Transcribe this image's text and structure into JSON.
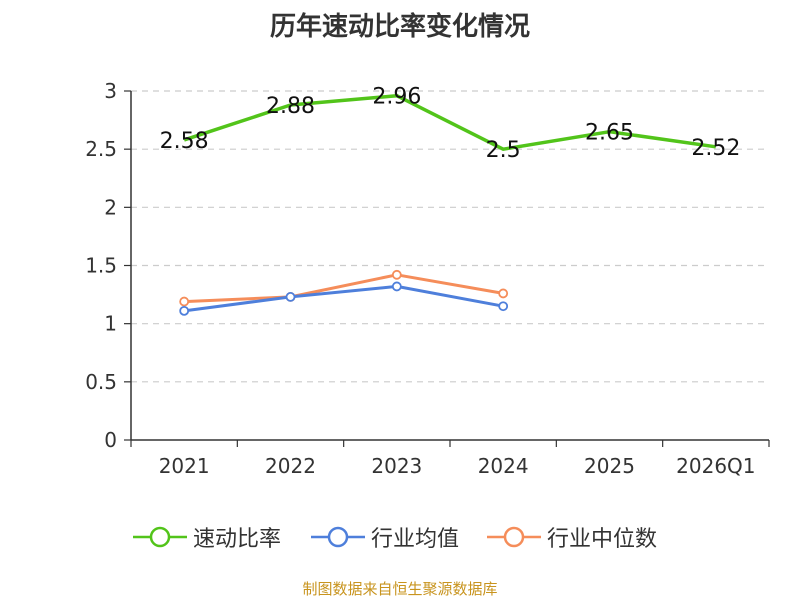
{
  "chart_data": {
    "type": "line",
    "title": "历年速动比率变化情况",
    "categories": [
      "2021",
      "2022",
      "2023",
      "2024",
      "2025",
      "2026Q1"
    ],
    "ylim": [
      0,
      3
    ],
    "yticks": [
      0,
      0.5,
      1,
      1.5,
      2,
      2.5,
      3
    ],
    "ytick_labels": [
      "0",
      "0.5",
      "1",
      "1.5",
      "2",
      "2.5",
      "3"
    ],
    "grid": true,
    "legend_position": "bottom",
    "series": [
      {
        "name": "速动比率",
        "color": "#52c41a",
        "values": [
          2.58,
          2.88,
          2.96,
          2.5,
          2.65,
          2.52
        ],
        "labels": [
          "2.58",
          "2.88",
          "2.96",
          "2.5",
          "2.65",
          "2.52"
        ]
      },
      {
        "name": "行业均值",
        "color": "#4e7fdb",
        "values": [
          1.11,
          1.23,
          1.32,
          1.15,
          null,
          null
        ]
      },
      {
        "name": "行业中位数",
        "color": "#f58d5a",
        "values": [
          1.19,
          1.23,
          1.42,
          1.26,
          null,
          null
        ]
      }
    ]
  },
  "source": "制图数据来自恒生聚源数据库"
}
